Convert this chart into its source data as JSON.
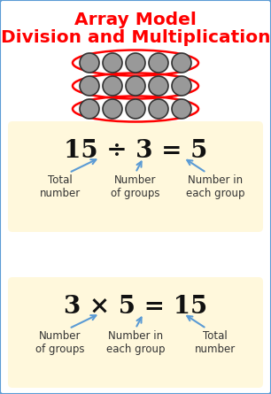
{
  "title_line1": "Array Model",
  "title_line2": "Division and Multiplication",
  "title_color": "#FF0000",
  "title_fontsize": 14.5,
  "bg_color": "#FFFFFF",
  "border_color": "#5B9BD5",
  "box_color": "#FFF8DC",
  "circle_color": "#999999",
  "circle_edge_color": "#333333",
  "ellipse_color": "#FF0000",
  "arrow_color": "#5B9BD5",
  "eq1": "15 ÷ 3 = 5",
  "eq2": "3 × 5 = 15",
  "eq_fontsize": 20,
  "label1_left": "Total\nnumber",
  "label1_mid": "Number\nof groups",
  "label1_right": "Number in\neach group",
  "label2_left": "Number\nof groups",
  "label2_mid": "Number in\neach group",
  "label2_right": "Total\nnumber",
  "label_fontsize": 8.5,
  "label_color": "#333333"
}
